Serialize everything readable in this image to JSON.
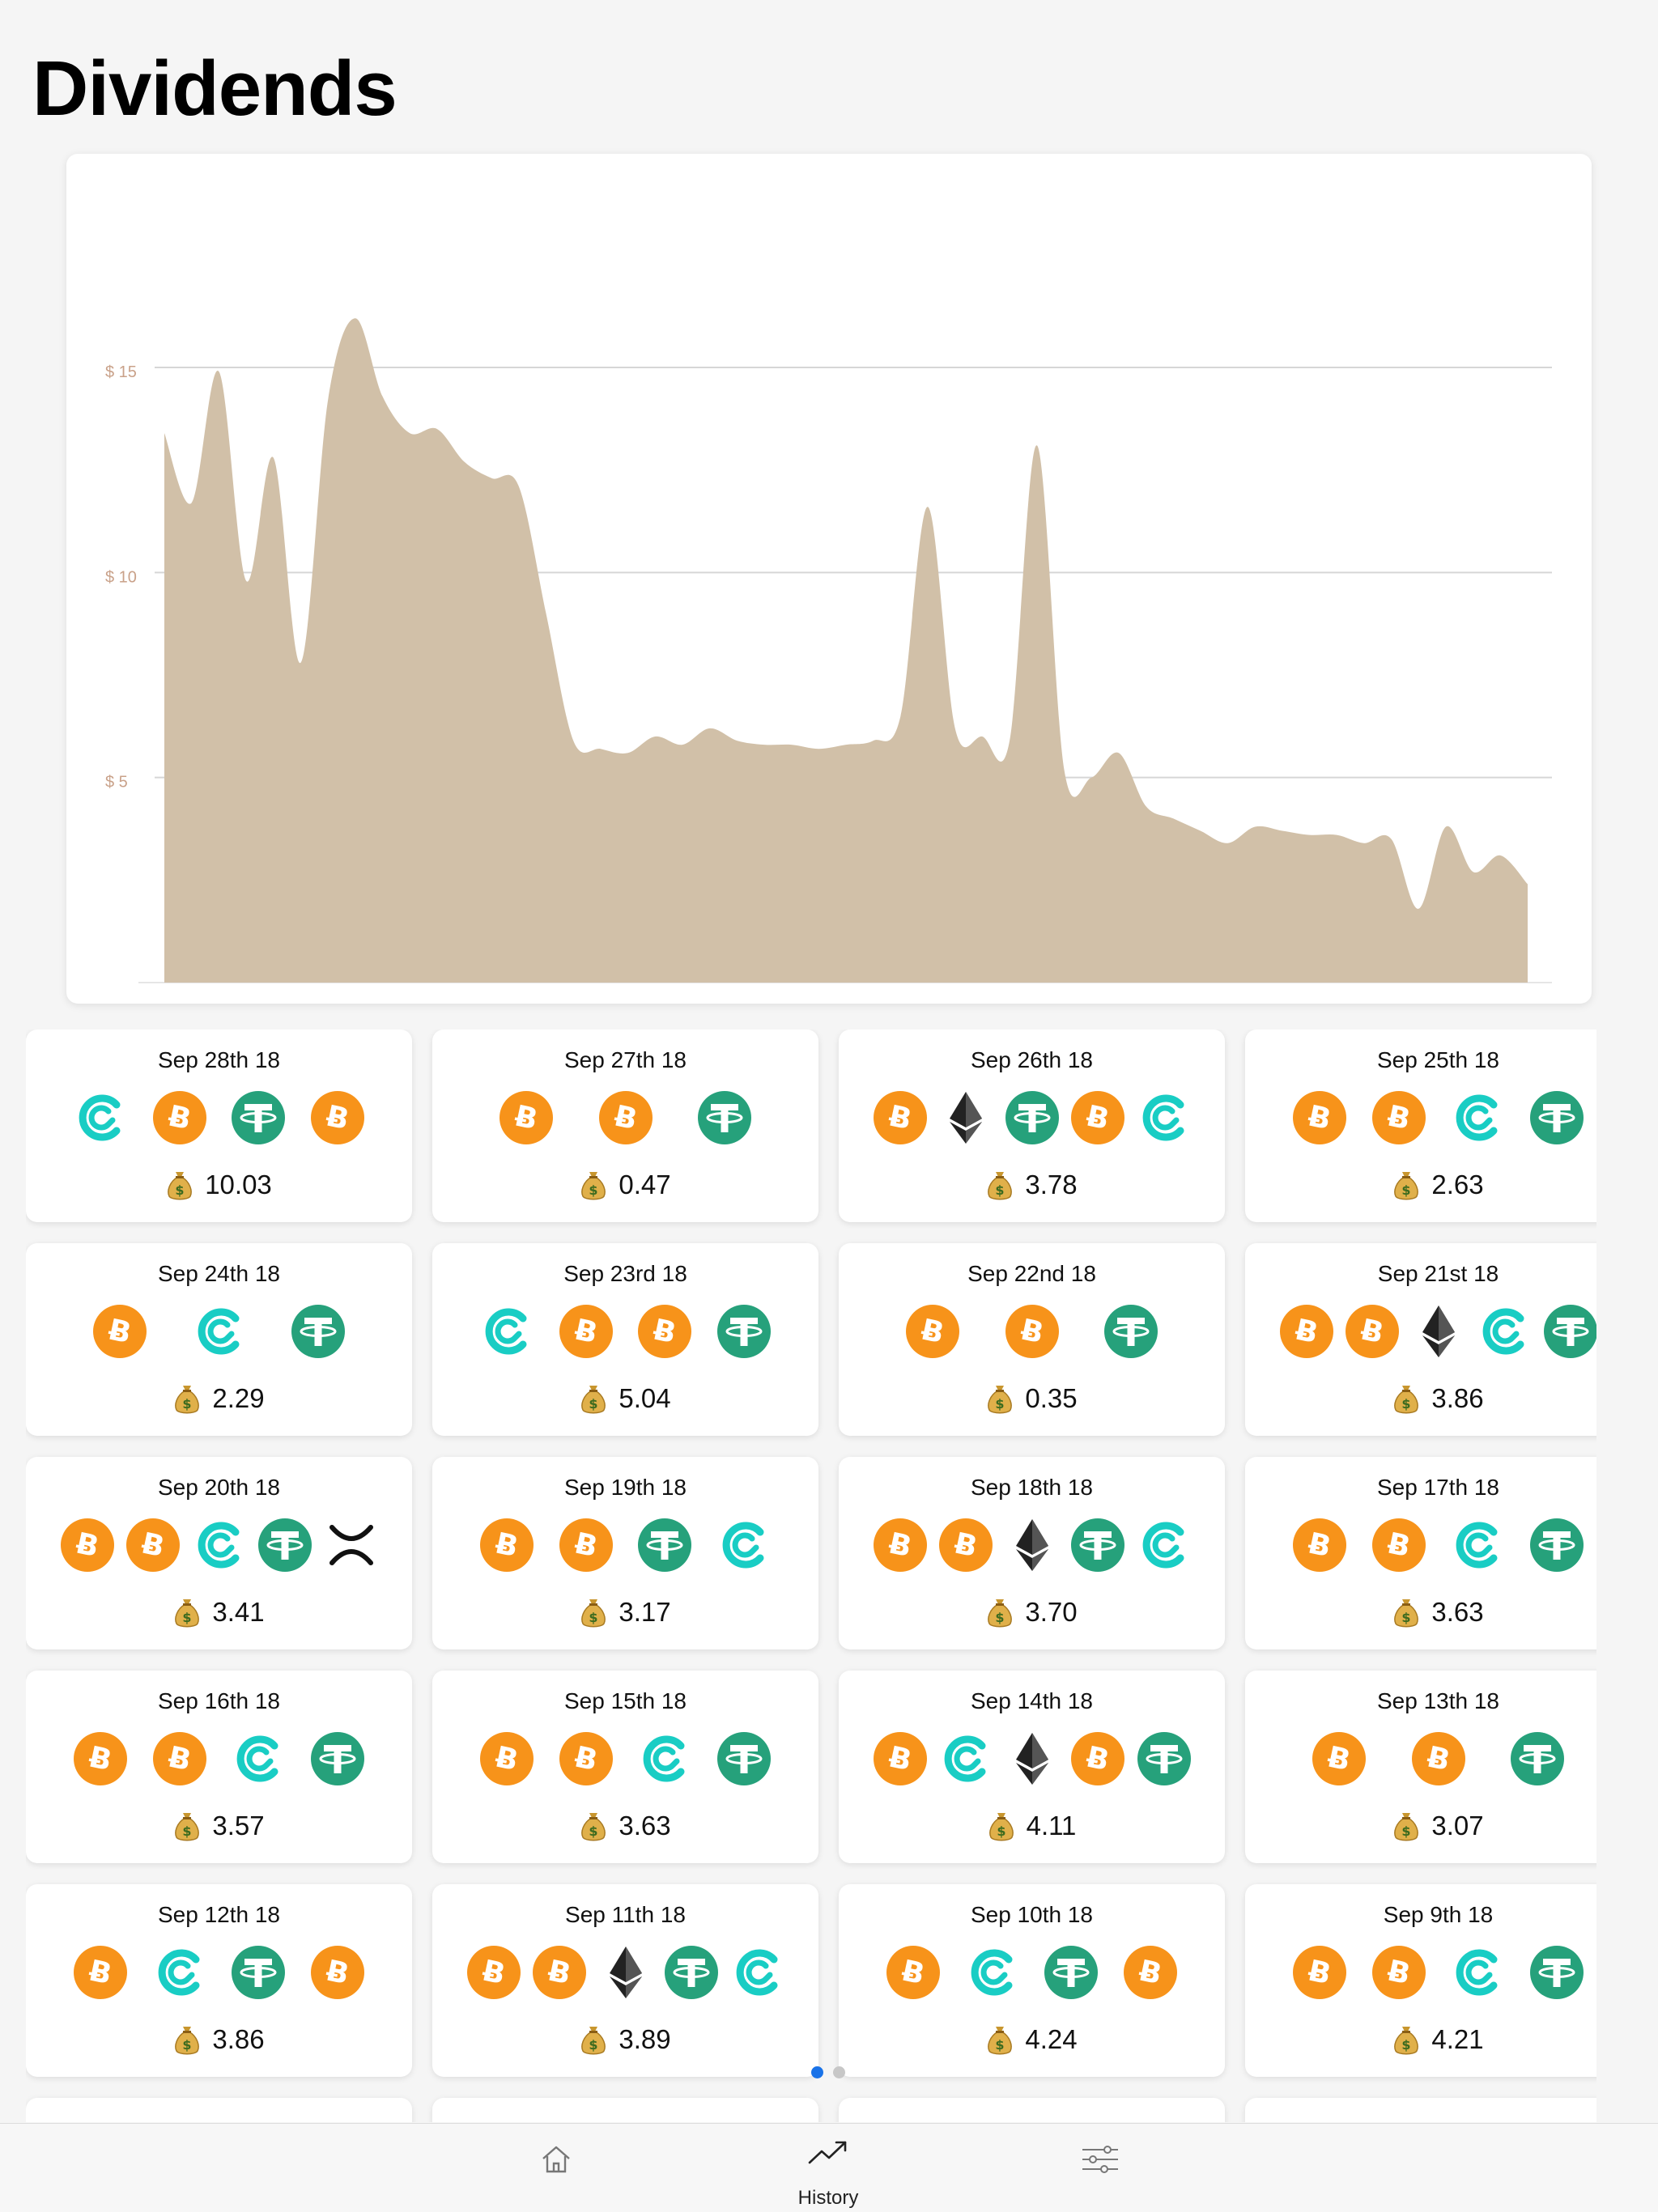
{
  "header": {
    "title": "Dividends"
  },
  "colors": {
    "area_fill": "#d1c0a8",
    "grid_line": "#d6d6d6",
    "axis_label": "#c9a189",
    "bitcoin": "#f7931a",
    "tether": "#26a17b",
    "cred": "#19cdc4",
    "ethereum": "#222222",
    "xrp": "#111111",
    "pager_active": "#1a73e8"
  },
  "chart_data": {
    "type": "area",
    "title": "",
    "xlabel": "",
    "ylabel": "",
    "y_ticks": [
      "$ 5",
      "$ 10",
      "$ 15"
    ],
    "ylim": [
      0,
      16.5
    ],
    "grid": "horizontal",
    "values": [
      13.4,
      11.7,
      14.9,
      9.8,
      12.8,
      7.8,
      14.2,
      16.2,
      14.3,
      13.4,
      13.5,
      12.7,
      12.3,
      12.1,
      9.0,
      5.9,
      5.7,
      5.6,
      6.0,
      5.8,
      6.2,
      5.9,
      5.8,
      5.8,
      5.7,
      5.8,
      5.9,
      6.5,
      11.6,
      6.2,
      6.0,
      5.9,
      13.1,
      5.2,
      5.0,
      5.6,
      4.3,
      4.0,
      3.7,
      3.4,
      3.8,
      3.7,
      3.6,
      3.6,
      3.4,
      3.5,
      1.8,
      3.8,
      2.7,
      3.1,
      2.4
    ]
  },
  "dividends": [
    {
      "date": "Sep 28th 18",
      "amount": "10.03",
      "coins": [
        "cred",
        "bitcoin",
        "tether",
        "bitcoin"
      ]
    },
    {
      "date": "Sep 27th 18",
      "amount": "0.47",
      "coins": [
        "bitcoin",
        "bitcoin",
        "tether"
      ]
    },
    {
      "date": "Sep 26th 18",
      "amount": "3.78",
      "coins": [
        "bitcoin",
        "ethereum",
        "tether",
        "bitcoin",
        "cred"
      ]
    },
    {
      "date": "Sep 25th 18",
      "amount": "2.63",
      "coins": [
        "bitcoin",
        "bitcoin",
        "cred",
        "tether"
      ]
    },
    {
      "date": "Sep 24th 18",
      "amount": "2.29",
      "coins": [
        "bitcoin",
        "cred",
        "tether"
      ]
    },
    {
      "date": "Sep 23rd 18",
      "amount": "5.04",
      "coins": [
        "cred",
        "bitcoin",
        "bitcoin",
        "tether"
      ]
    },
    {
      "date": "Sep 22nd 18",
      "amount": "0.35",
      "coins": [
        "bitcoin",
        "bitcoin",
        "tether"
      ]
    },
    {
      "date": "Sep 21st 18",
      "amount": "3.86",
      "coins": [
        "bitcoin",
        "bitcoin",
        "ethereum",
        "cred",
        "tether"
      ]
    },
    {
      "date": "Sep 20th 18",
      "amount": "3.41",
      "coins": [
        "bitcoin",
        "bitcoin",
        "cred",
        "tether",
        "xrp"
      ]
    },
    {
      "date": "Sep 19th 18",
      "amount": "3.17",
      "coins": [
        "bitcoin",
        "bitcoin",
        "tether",
        "cred"
      ]
    },
    {
      "date": "Sep 18th 18",
      "amount": "3.70",
      "coins": [
        "bitcoin",
        "bitcoin",
        "ethereum",
        "tether",
        "cred"
      ]
    },
    {
      "date": "Sep 17th 18",
      "amount": "3.63",
      "coins": [
        "bitcoin",
        "bitcoin",
        "cred",
        "tether"
      ]
    },
    {
      "date": "Sep 16th 18",
      "amount": "3.57",
      "coins": [
        "bitcoin",
        "bitcoin",
        "cred",
        "tether"
      ]
    },
    {
      "date": "Sep 15th 18",
      "amount": "3.63",
      "coins": [
        "bitcoin",
        "bitcoin",
        "cred",
        "tether"
      ]
    },
    {
      "date": "Sep 14th 18",
      "amount": "4.11",
      "coins": [
        "bitcoin",
        "cred",
        "ethereum",
        "bitcoin",
        "tether"
      ]
    },
    {
      "date": "Sep 13th 18",
      "amount": "3.07",
      "coins": [
        "bitcoin",
        "bitcoin",
        "tether"
      ]
    },
    {
      "date": "Sep 12th 18",
      "amount": "3.86",
      "coins": [
        "bitcoin",
        "cred",
        "tether",
        "bitcoin"
      ]
    },
    {
      "date": "Sep 11th 18",
      "amount": "3.89",
      "coins": [
        "bitcoin",
        "bitcoin",
        "ethereum",
        "tether",
        "cred"
      ]
    },
    {
      "date": "Sep 10th 18",
      "amount": "4.24",
      "coins": [
        "bitcoin",
        "cred",
        "tether",
        "bitcoin"
      ]
    },
    {
      "date": "Sep 9th 18",
      "amount": "4.21",
      "coins": [
        "bitcoin",
        "bitcoin",
        "cred",
        "tether"
      ]
    }
  ],
  "pager": {
    "count": 2,
    "active": 0
  },
  "tabbar": {
    "items": [
      {
        "id": "home",
        "icon": "home-icon",
        "label": ""
      },
      {
        "id": "history",
        "icon": "trending-up-icon",
        "label": "History"
      },
      {
        "id": "settings",
        "icon": "sliders-icon",
        "label": ""
      }
    ]
  }
}
